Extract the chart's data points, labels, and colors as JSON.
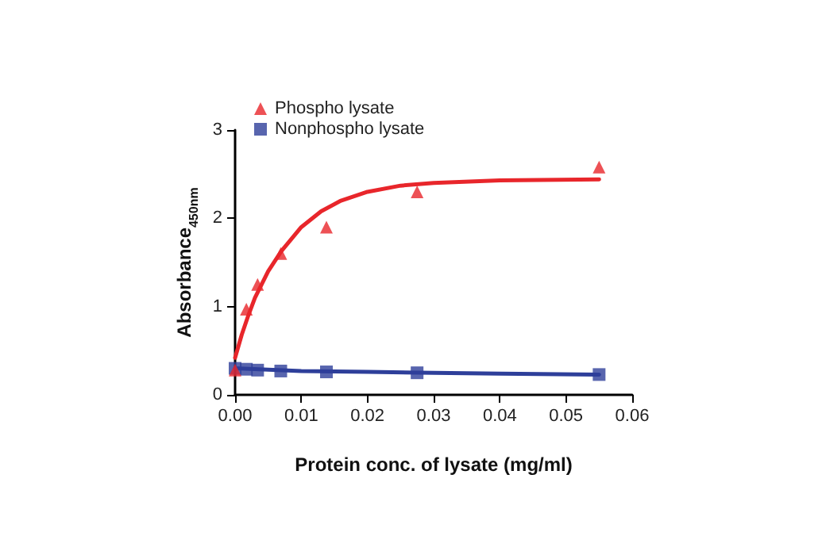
{
  "chart_data": {
    "type": "scatter",
    "xlabel": "Protein conc. of lysate (mg/ml)",
    "ylabel": "Absorbance$_{450nm}$",
    "xlim": [
      0,
      0.06
    ],
    "xticks": [
      {
        "value": 0,
        "label": "0.00"
      },
      0.01,
      0.02,
      0.03,
      0.04,
      0.05,
      0.06
    ],
    "ylim": [
      0,
      3
    ],
    "yticks": [
      0,
      1,
      2,
      3
    ],
    "grid": false,
    "legend": "top left",
    "series": [
      {
        "name": "Phospho lysate",
        "color": "#e8262b",
        "marker": "triangle",
        "x": [
          0,
          0.0017,
          0.0034,
          0.0069,
          0.0138,
          0.0275,
          0.055
        ],
        "values": [
          0.28,
          0.97,
          1.25,
          1.6,
          1.9,
          2.3,
          2.58
        ]
      },
      {
        "name": "Nonphospho lysate",
        "color": "#2e3f9a",
        "marker": "square",
        "x": [
          0,
          0.0017,
          0.0034,
          0.0069,
          0.0138,
          0.0275,
          0.055
        ],
        "values": [
          0.3,
          0.29,
          0.28,
          0.27,
          0.26,
          0.25,
          0.23
        ]
      },
      {
        "type": "line",
        "color": "#e8262b",
        "marker": "none",
        "x": [
          0,
          0.001,
          0.002,
          0.003,
          0.004,
          0.005,
          0.007,
          0.01,
          0.013,
          0.016,
          0.02,
          0.025,
          0.03,
          0.04,
          0.055
        ],
        "values": [
          0.42,
          0.68,
          0.9,
          1.1,
          1.25,
          1.4,
          1.63,
          1.9,
          2.08,
          2.2,
          2.3,
          2.37,
          2.4,
          2.43,
          2.44
        ]
      },
      {
        "type": "line",
        "color": "#2e3f9a",
        "marker": "none",
        "x": [
          0,
          0.01,
          0.02,
          0.03,
          0.04,
          0.055
        ],
        "values": [
          0.3,
          0.27,
          0.26,
          0.25,
          0.24,
          0.23
        ]
      }
    ]
  }
}
